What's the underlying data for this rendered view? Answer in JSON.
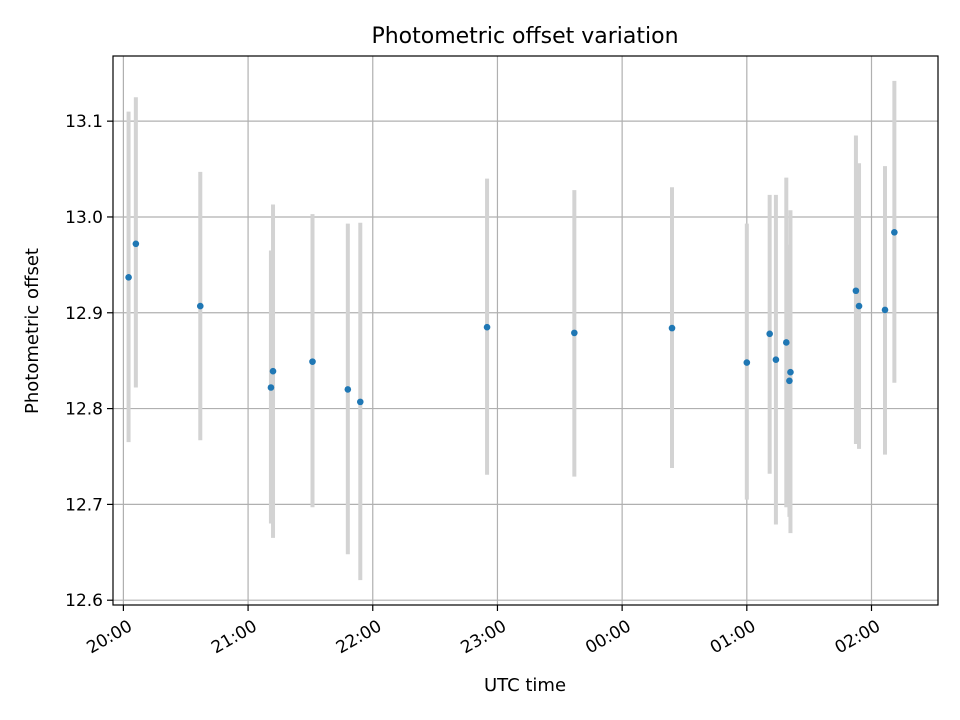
{
  "chart_data": {
    "type": "scatter",
    "title": "Photometric offset variation",
    "xlabel": "UTC time",
    "ylabel": "Photometric offset",
    "x_unit": "UTC time of day; times after midnight are written as 24:xx, 25:xx, 26:xx",
    "xlim": [
      "19:55",
      "26:32"
    ],
    "ylim": [
      12.595,
      13.168
    ],
    "x_ticks": [
      "20:00",
      "21:00",
      "22:00",
      "23:00",
      "24:00",
      "25:00",
      "26:00"
    ],
    "x_tick_labels": [
      "20:00",
      "21:00",
      "22:00",
      "23:00",
      "00:00",
      "01:00",
      "02:00"
    ],
    "y_ticks": [
      12.6,
      12.7,
      12.8,
      12.9,
      13.0,
      13.1
    ],
    "y_tick_labels": [
      "12.6",
      "12.7",
      "12.8",
      "12.9",
      "13.0",
      "13.1"
    ],
    "grid": true,
    "marker_color": "#1f77b4",
    "errorbar_color": "#d3d3d3",
    "points": [
      {
        "x": "20:02.5",
        "y": 12.937,
        "low": 12.765,
        "high": 13.11
      },
      {
        "x": "20:06",
        "y": 12.972,
        "low": 12.822,
        "high": 13.125
      },
      {
        "x": "20:37",
        "y": 12.907,
        "low": 12.767,
        "high": 13.047
      },
      {
        "x": "21:11",
        "y": 12.822,
        "low": 12.68,
        "high": 12.965
      },
      {
        "x": "21:12",
        "y": 12.839,
        "low": 12.665,
        "high": 13.013
      },
      {
        "x": "21:31",
        "y": 12.849,
        "low": 12.697,
        "high": 13.003
      },
      {
        "x": "21:48",
        "y": 12.82,
        "low": 12.648,
        "high": 12.993
      },
      {
        "x": "21:54",
        "y": 12.807,
        "low": 12.621,
        "high": 12.994
      },
      {
        "x": "22:55",
        "y": 12.885,
        "low": 12.731,
        "high": 13.04
      },
      {
        "x": "23:37",
        "y": 12.879,
        "low": 12.729,
        "high": 13.028
      },
      {
        "x": "24:24",
        "y": 12.884,
        "low": 12.738,
        "high": 13.031
      },
      {
        "x": "25:00",
        "y": 12.848,
        "low": 12.705,
        "high": 12.993
      },
      {
        "x": "25:11",
        "y": 12.878,
        "low": 12.732,
        "high": 13.023
      },
      {
        "x": "25:14",
        "y": 12.851,
        "low": 12.679,
        "high": 13.023
      },
      {
        "x": "25:19",
        "y": 12.869,
        "low": 12.697,
        "high": 13.041
      },
      {
        "x": "25:20.5",
        "y": 12.829,
        "low": 12.687,
        "high": 12.971
      },
      {
        "x": "25:21",
        "y": 12.838,
        "low": 12.67,
        "high": 13.007
      },
      {
        "x": "25:52.5",
        "y": 12.923,
        "low": 12.763,
        "high": 13.085
      },
      {
        "x": "25:54",
        "y": 12.907,
        "low": 12.758,
        "high": 13.056
      },
      {
        "x": "26:06.5",
        "y": 12.903,
        "low": 12.752,
        "high": 13.053
      },
      {
        "x": "26:11",
        "y": 12.984,
        "low": 12.827,
        "high": 13.142
      }
    ]
  }
}
